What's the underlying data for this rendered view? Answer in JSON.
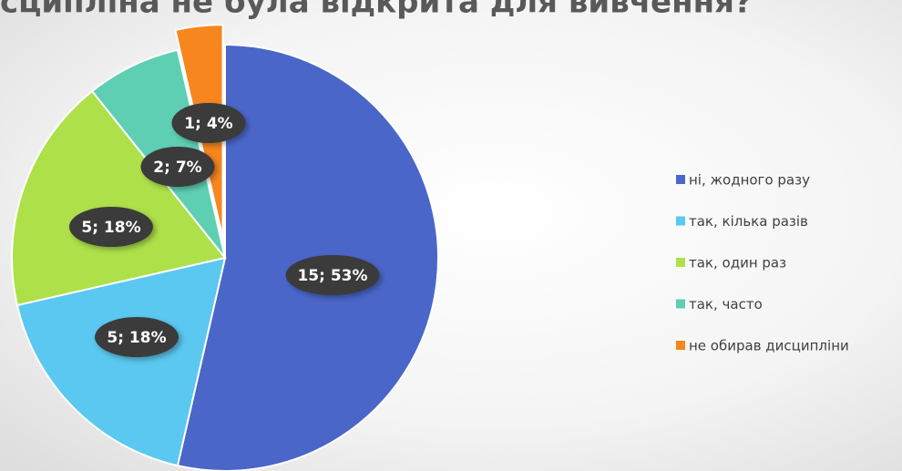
{
  "chart_data": {
    "type": "pie",
    "title": "сципліна не була відкрита для вивчення?",
    "categories": [
      "ні, жодного разу",
      "так, кілька разів",
      "так, один раз",
      "так, часто",
      "не обирав дисципліни"
    ],
    "values": [
      15,
      5,
      5,
      2,
      1
    ],
    "value_labels": [
      "15; 53%",
      "5; 18%",
      "5; 18%",
      "2; 7%",
      "1; 4%"
    ],
    "colors": [
      "#4a66c9",
      "#5ac8f0",
      "#aee04a",
      "#5ecfb3",
      "#f7861e"
    ],
    "exploded": [
      false,
      false,
      false,
      false,
      true
    ],
    "legend": "right"
  }
}
